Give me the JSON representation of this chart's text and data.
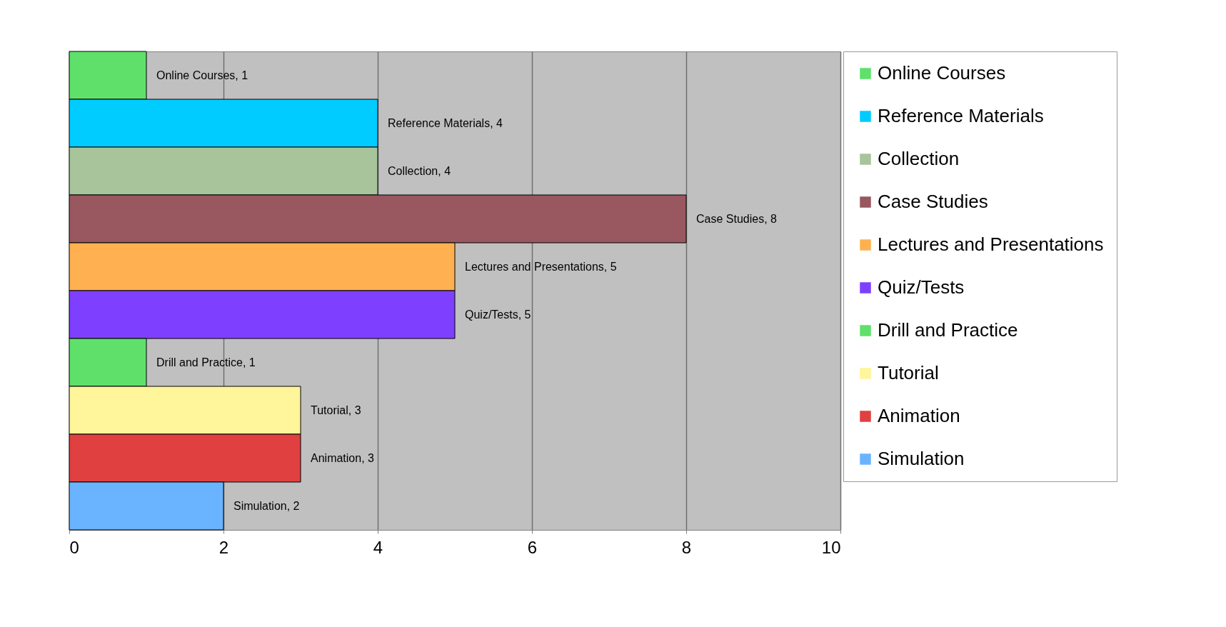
{
  "chart_data": {
    "type": "bar",
    "orientation": "horizontal",
    "categories": [
      null,
      null,
      null,
      null,
      null,
      null,
      null,
      null,
      null,
      null
    ],
    "series": [
      {
        "name": "Online Courses",
        "color": "#5fe06a",
        "values": [
          1,
          null,
          null,
          null,
          null,
          null,
          null,
          null,
          null,
          null
        ],
        "value_labels": [
          "Online Courses, 1",
          null,
          null,
          null,
          null,
          null,
          null,
          null,
          null,
          null
        ]
      },
      {
        "name": "Reference Materials",
        "color": "#00ccff",
        "values": [
          null,
          4,
          null,
          null,
          null,
          null,
          null,
          null,
          null,
          null
        ],
        "value_labels": [
          null,
          "Reference Materials, 4",
          null,
          null,
          null,
          null,
          null,
          null,
          null,
          null
        ]
      },
      {
        "name": "Collection",
        "color": "#a8c49a",
        "values": [
          null,
          null,
          4,
          null,
          null,
          null,
          null,
          null,
          null,
          null
        ],
        "value_labels": [
          null,
          null,
          "Collection, 4",
          null,
          null,
          null,
          null,
          null,
          null,
          null
        ]
      },
      {
        "name": "Case Studies",
        "color": "#99575f",
        "values": [
          null,
          null,
          null,
          8,
          null,
          null,
          null,
          null,
          null,
          null
        ],
        "value_labels": [
          null,
          null,
          null,
          "Case Studies, 8",
          null,
          null,
          null,
          null,
          null,
          null
        ]
      },
      {
        "name": "Lectures and Presentations",
        "color": "#ffb050",
        "values": [
          null,
          null,
          null,
          null,
          5,
          null,
          null,
          null,
          null,
          null
        ],
        "value_labels": [
          null,
          null,
          null,
          null,
          "Lectures and Presentations, 5",
          null,
          null,
          null,
          null,
          null
        ]
      },
      {
        "name": "Quiz/Tests",
        "color": "#7f3fff",
        "values": [
          null,
          null,
          null,
          null,
          null,
          5,
          null,
          null,
          null,
          null
        ],
        "value_labels": [
          null,
          null,
          null,
          null,
          null,
          "Quiz/Tests, 5",
          null,
          null,
          null,
          null
        ]
      },
      {
        "name": "Drill and Practice",
        "color": "#5fe06a",
        "values": [
          null,
          null,
          null,
          null,
          null,
          null,
          1,
          null,
          null,
          null
        ],
        "value_labels": [
          null,
          null,
          null,
          null,
          null,
          null,
          "Drill and Practice, 1",
          null,
          null,
          null
        ]
      },
      {
        "name": "Tutorial",
        "color": "#fff59a",
        "values": [
          null,
          null,
          null,
          null,
          null,
          null,
          null,
          3,
          null,
          null
        ],
        "value_labels": [
          null,
          null,
          null,
          null,
          null,
          null,
          null,
          "Tutorial, 3",
          null,
          null
        ]
      },
      {
        "name": "Animation",
        "color": "#e04040",
        "values": [
          null,
          null,
          null,
          null,
          null,
          null,
          null,
          null,
          3,
          null
        ],
        "value_labels": [
          null,
          null,
          null,
          null,
          null,
          null,
          null,
          null,
          "Animation, 3",
          null
        ]
      },
      {
        "name": "Simulation",
        "color": "#6ab4ff",
        "values": [
          null,
          null,
          null,
          null,
          null,
          null,
          null,
          null,
          null,
          2
        ],
        "value_labels": [
          null,
          null,
          null,
          null,
          null,
          null,
          null,
          null,
          null,
          "Simulation, 2"
        ]
      }
    ],
    "xlim": [
      0,
      10
    ],
    "xticks": [
      0,
      2,
      4,
      6,
      8,
      10
    ],
    "grid": "x",
    "legend": "right",
    "tick_labels": "x"
  }
}
